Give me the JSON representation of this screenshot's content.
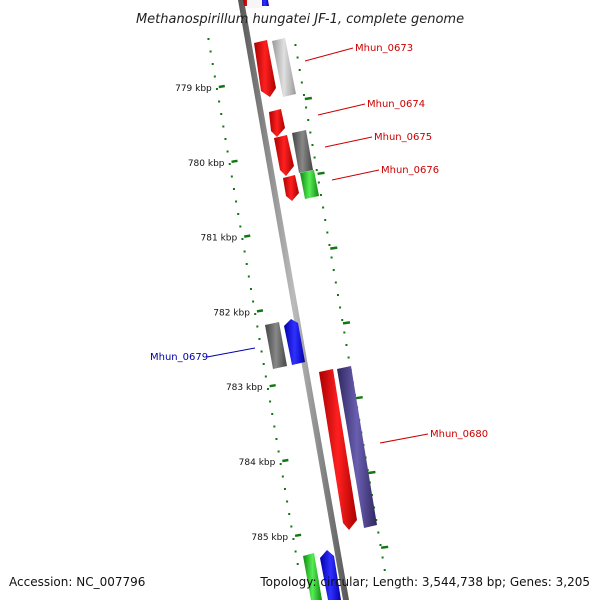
{
  "title": "Methanospirillum hungatei JF-1, complete genome",
  "footer": {
    "accession": "Accession: NC_007796",
    "summary": "Topology: circular; Length: 3,544,738 bp; Genes: 3,205"
  },
  "scale_ticks": [
    {
      "label": "779 kbp",
      "pos": 779
    },
    {
      "label": "780 kbp",
      "pos": 780
    },
    {
      "label": "781 kbp",
      "pos": 781
    },
    {
      "label": "782 kbp",
      "pos": 782
    },
    {
      "label": "783 kbp",
      "pos": 783
    },
    {
      "label": "784 kbp",
      "pos": 784
    },
    {
      "label": "785 kbp",
      "pos": 785
    }
  ],
  "gene_labels": [
    {
      "name": "Mhun_0673",
      "color": "#cc0000"
    },
    {
      "name": "Mhun_0674",
      "color": "#cc0000"
    },
    {
      "name": "Mhun_0675",
      "color": "#cc0000"
    },
    {
      "name": "Mhun_0676",
      "color": "#cc0000"
    },
    {
      "name": "Mhun_0679",
      "color": "#0000aa"
    },
    {
      "name": "Mhun_0680",
      "color": "#cc0000"
    }
  ],
  "colors": {
    "cds_red": "#ff0000",
    "cds_gray": "#666666",
    "cds_light_gray": "#bbbbbb",
    "cds_blue": "#0000ff",
    "cds_green": "#33cc33",
    "cds_purple": "#4b3f8a",
    "backbone": "#888888",
    "tick_green": "#117711"
  }
}
